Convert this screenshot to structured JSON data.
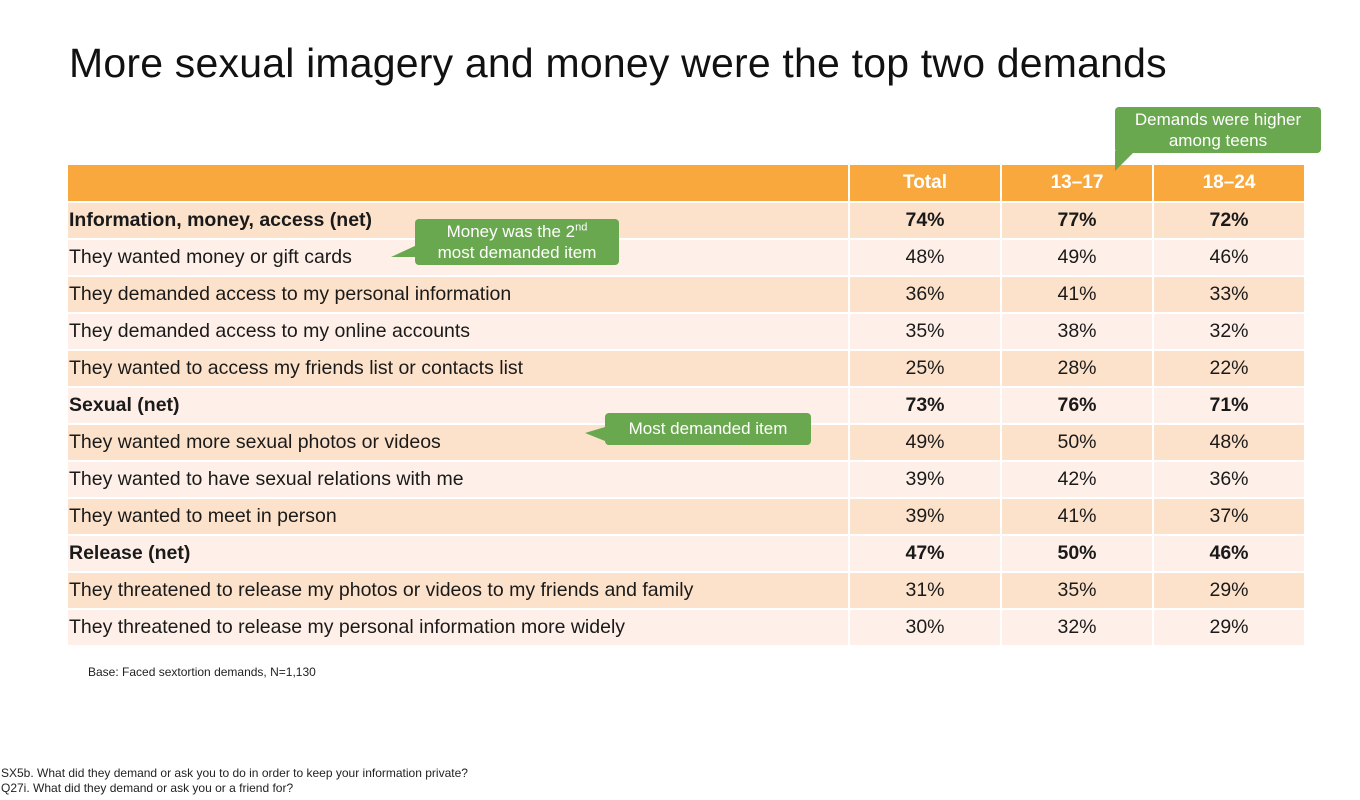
{
  "title": "More sexual imagery and money were the top two demands",
  "columns": [
    "Total",
    "13–17",
    "18–24"
  ],
  "rows": [
    {
      "label": "Information, money, access (net)",
      "values": [
        "74%",
        "77%",
        "72%"
      ]
    },
    {
      "label": "They wanted money or gift cards",
      "values": [
        "48%",
        "49%",
        "46%"
      ]
    },
    {
      "label": "They demanded access to my personal information",
      "values": [
        "36%",
        "41%",
        "33%"
      ]
    },
    {
      "label": "They demanded access to my online accounts",
      "values": [
        "35%",
        "38%",
        "32%"
      ]
    },
    {
      "label": "They wanted to access my friends list or contacts list",
      "values": [
        "25%",
        "28%",
        "22%"
      ]
    },
    {
      "label": "Sexual (net)",
      "values": [
        "73%",
        "76%",
        "71%"
      ]
    },
    {
      "label": "They wanted more sexual photos or videos",
      "values": [
        "49%",
        "50%",
        "48%"
      ]
    },
    {
      "label": "They wanted to have sexual relations with me",
      "values": [
        "39%",
        "42%",
        "36%"
      ]
    },
    {
      "label": "They wanted to meet in person",
      "values": [
        "39%",
        "41%",
        "37%"
      ]
    },
    {
      "label": "Release (net)",
      "values": [
        "47%",
        "50%",
        "46%"
      ]
    },
    {
      "label": "They threatened to release my photos or videos to my friends and family",
      "values": [
        "31%",
        "35%",
        "29%"
      ]
    },
    {
      "label": "They threatened to release my personal information more widely",
      "values": [
        "30%",
        "32%",
        "29%"
      ]
    }
  ],
  "callouts": {
    "teens_line1": "Demands were higher",
    "teens_line2": "among teens",
    "money_line1_a": "Money was the 2",
    "money_line1_sup": "nd",
    "money_line2": "most demanded item",
    "most": "Most demanded item"
  },
  "base_note": "Base: Faced sextortion demands, N=1,130",
  "questions": [
    "SX5b. What did they demand or ask you to do in order to keep your information private?",
    "Q27i. What did they demand or ask you or a friend for?"
  ],
  "colors": {
    "header_orange": "#f9a83e",
    "row_dark": "#fde2cb",
    "row_light": "#fef0e8",
    "callout_green": "#6aa84f"
  }
}
